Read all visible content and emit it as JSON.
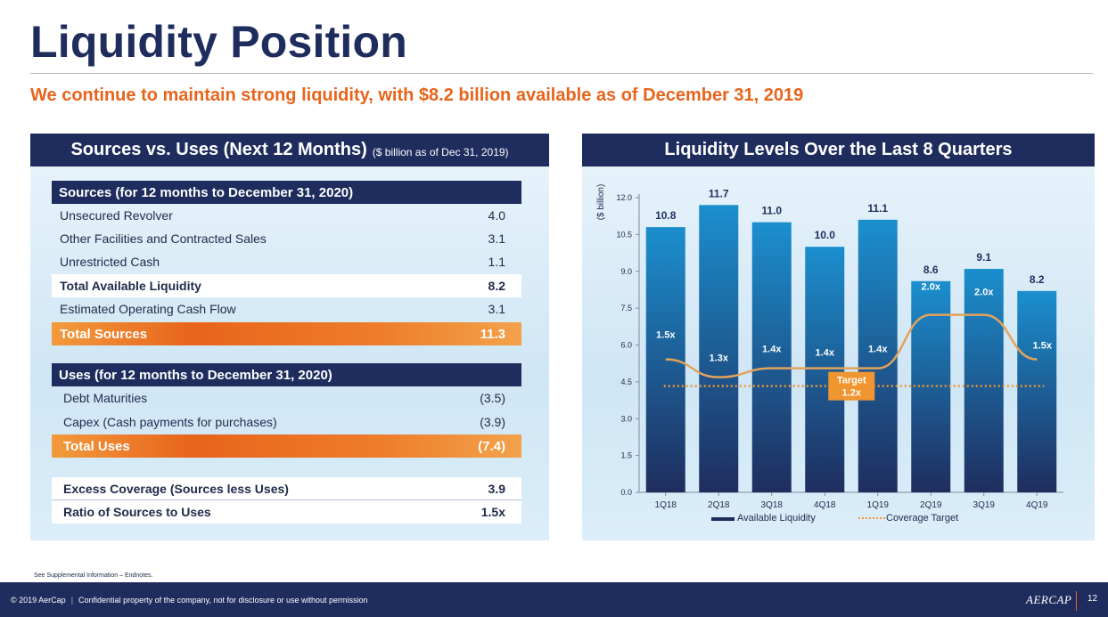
{
  "header": {
    "title": "Liquidity Position",
    "subtitle": "We continue to maintain strong liquidity, with $8.2 billion available as of December 31, 2019"
  },
  "left_panel": {
    "title": "Sources vs. Uses (Next 12 Months)",
    "title_note": "($ billion as of Dec 31, 2019)",
    "sources": {
      "header": "Sources (for 12 months to December 31, 2020)",
      "rows": [
        {
          "label": "Unsecured Revolver",
          "value": "4.0"
        },
        {
          "label": "Other Facilities and Contracted Sales",
          "value": "3.1"
        },
        {
          "label": "Unrestricted Cash",
          "value": "1.1"
        },
        {
          "label": "Total Available Liquidity",
          "value": "8.2"
        },
        {
          "label": "Estimated Operating Cash Flow",
          "value": "3.1"
        },
        {
          "label": "Total Sources",
          "value": "11.3"
        }
      ]
    },
    "uses": {
      "header": "Uses (for 12 months to December 31, 2020)",
      "rows": [
        {
          "label": "Debt Maturities",
          "value": "(3.5)"
        },
        {
          "label": "Capex (Cash payments for purchases)",
          "value": "(3.9)"
        },
        {
          "label": "Total Uses",
          "value": "(7.4)"
        }
      ]
    },
    "coverage": [
      {
        "label": "Excess Coverage (Sources less Uses)",
        "value": "3.9"
      },
      {
        "label": "Ratio of Sources to Uses",
        "value": "1.5x"
      }
    ]
  },
  "right_panel": {
    "title": "Liquidity Levels Over the Last 8 Quarters"
  },
  "chart_data": {
    "type": "bar",
    "title": "Liquidity Levels Over the Last 8 Quarters",
    "ylabel": "($ billion)",
    "xlabel": "",
    "ylim": [
      0,
      12
    ],
    "yticks": [
      "0.0",
      "1.5",
      "3.0",
      "4.5",
      "6.0",
      "7.5",
      "9.0",
      "10.5",
      "12.0"
    ],
    "categories": [
      "1Q18",
      "2Q18",
      "3Q18",
      "4Q18",
      "1Q19",
      "2Q19",
      "3Q19",
      "4Q19"
    ],
    "series": [
      {
        "name": "Available Liquidity",
        "type": "bar",
        "values": [
          10.8,
          11.7,
          11.0,
          10.0,
          11.1,
          8.6,
          9.1,
          8.2
        ],
        "labels": [
          "10.8",
          "11.7",
          "11.0",
          "10.0",
          "11.1",
          "8.6",
          "9.1",
          "8.2"
        ]
      },
      {
        "name": "Coverage Ratio",
        "type": "line",
        "values": [
          1.5,
          1.3,
          1.4,
          1.4,
          1.4,
          2.0,
          2.0,
          1.5
        ],
        "labels": [
          "1.5x",
          "1.3x",
          "1.4x",
          "1.4x",
          "1.4x",
          "2.0x",
          "2.0x",
          "1.5x"
        ]
      },
      {
        "name": "Coverage Target",
        "type": "dotted-line",
        "value": 1.2
      }
    ],
    "target_label": [
      "Target",
      "1.2x"
    ],
    "legend": [
      "Available Liquidity",
      "Coverage Target"
    ],
    "legend_position": "bottom",
    "colors": {
      "bar_top": "#1b8fce",
      "bar_bottom": "#1f2d5e",
      "line": "#e2a35c",
      "target": "#f0952f",
      "target_box": "#f0952f"
    }
  },
  "footer": {
    "footnote": "See Supplemental Information – Endnotes.",
    "copyright": "© 2019 AerCap",
    "separator": "|",
    "confidential": "Confidential property of the company, not for disclosure or use without permission",
    "logo": "AERCAP",
    "page": "12"
  }
}
